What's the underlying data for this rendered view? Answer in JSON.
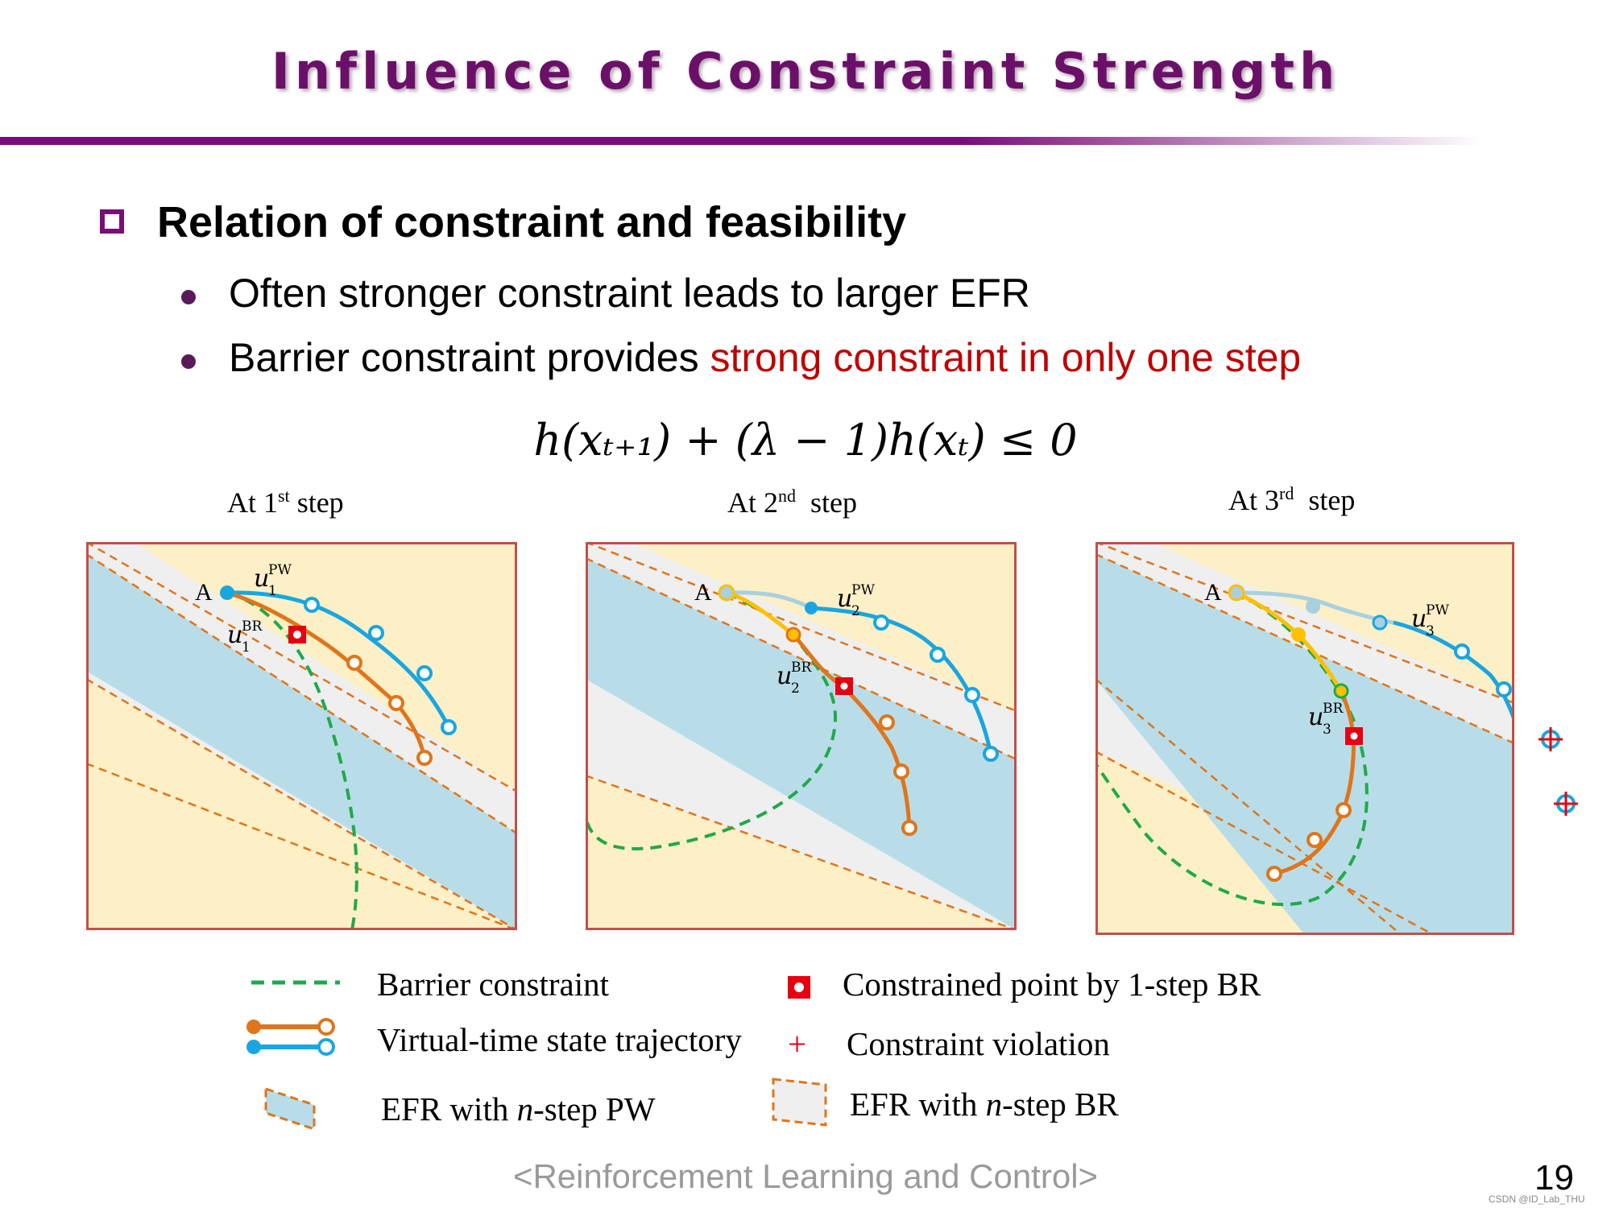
{
  "slide": {
    "title": "Influence of Constraint Strength",
    "heading": "Relation of constraint and feasibility",
    "bullets": [
      {
        "text": "Often stronger constraint leads to larger EFR",
        "highlight": ""
      },
      {
        "text": "Barrier constraint provides ",
        "highlight": "strong constraint in only one step"
      }
    ],
    "equation": "h(xₜ₊₁) + (λ − 1)h(xₜ) ≤ 0",
    "footer": "<Reinforcement Learning and Control>",
    "page_number": "19",
    "watermark": "CSDN @ID_Lab_THU"
  },
  "panels": [
    {
      "step_prefix": "At 1",
      "step_suffix": "st",
      "step_word": "step",
      "point_label": "A",
      "pw_label": "u",
      "pw_sub": "1",
      "pw_sup": "PW",
      "br_label": "u",
      "br_sub": "1",
      "br_sup": "BR"
    },
    {
      "step_prefix": "At 2",
      "step_suffix": "nd",
      "step_word": "step",
      "point_label": "A",
      "pw_label": "u",
      "pw_sub": "2",
      "pw_sup": "PW",
      "br_label": "u",
      "br_sub": "2",
      "br_sup": "BR"
    },
    {
      "step_prefix": "At 3",
      "step_suffix": "rd",
      "step_word": "step",
      "point_label": "A",
      "pw_label": "u",
      "pw_sub": "3",
      "pw_sup": "PW",
      "br_label": "u",
      "br_sub": "3",
      "br_sup": "BR"
    }
  ],
  "legend": {
    "barrier": "Barrier constraint",
    "trajectory": "Virtual-time state trajectory",
    "efr_pw_pre": "EFR with ",
    "efr_pw_n": "n",
    "efr_pw_post": "-step PW",
    "constrained_point": "Constrained point by 1-step BR",
    "violation_symbol": "+",
    "violation": "Constraint violation",
    "efr_br_pre": "EFR with ",
    "efr_br_n": "n",
    "efr_br_post": "-step BR"
  },
  "colors": {
    "title": "#6b1068",
    "accent_purple": "#7a0e78",
    "highlight_red": "#c00000",
    "pw_blue": "#19a6e0",
    "br_orange": "#e0751a",
    "barrier_green": "#20a94a",
    "efr_pw_fill": "#b8dde8",
    "efr_br_fill": "#efefef",
    "panel_bg": "#fdefc6",
    "panel_border": "#c0504d",
    "marker_red": "#e60012"
  }
}
